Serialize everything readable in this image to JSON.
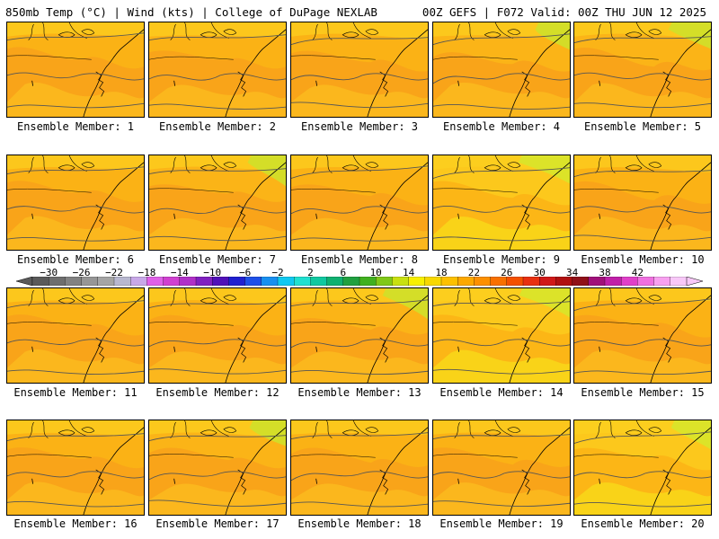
{
  "header": {
    "left": "850mb Temp (°C) | Wind (kts) | College of DuPage NEXLAB",
    "right": "00Z GEFS | F072 Valid: 00Z THU JUN 12 2025"
  },
  "member_label_prefix": "Ensemble Member: ",
  "members": [
    {
      "n": 1,
      "tone": "orange"
    },
    {
      "n": 2,
      "tone": "orange"
    },
    {
      "n": 3,
      "tone": "orange"
    },
    {
      "n": 4,
      "tone": "orange-green"
    },
    {
      "n": 5,
      "tone": "orange-green"
    },
    {
      "n": 6,
      "tone": "orange"
    },
    {
      "n": 7,
      "tone": "orange-green"
    },
    {
      "n": 8,
      "tone": "orange"
    },
    {
      "n": 9,
      "tone": "yellow"
    },
    {
      "n": 10,
      "tone": "orange"
    },
    {
      "n": 11,
      "tone": "orange"
    },
    {
      "n": 12,
      "tone": "orange"
    },
    {
      "n": 13,
      "tone": "orange-green"
    },
    {
      "n": 14,
      "tone": "yellow"
    },
    {
      "n": 15,
      "tone": "orange"
    },
    {
      "n": 16,
      "tone": "orange"
    },
    {
      "n": 17,
      "tone": "orange-green"
    },
    {
      "n": 18,
      "tone": "orange"
    },
    {
      "n": 19,
      "tone": "orange"
    },
    {
      "n": 20,
      "tone": "yellow"
    }
  ],
  "colorbar": {
    "labels": [
      "−30",
      "−26",
      "−22",
      "−18",
      "−14",
      "−10",
      "−6",
      "−2",
      "2",
      "6",
      "10",
      "14",
      "18",
      "22",
      "26",
      "30",
      "34",
      "38",
      "42"
    ],
    "colors": [
      "#5a5a5a",
      "#6e6e6e",
      "#828282",
      "#969696",
      "#a5a5a5",
      "#b8b8d0",
      "#c8a8e8",
      "#e060e8",
      "#d040d0",
      "#b030c8",
      "#8020c0",
      "#5010b8",
      "#2020d0",
      "#1e50e8",
      "#1890f0",
      "#10c8f0",
      "#20e0d0",
      "#10c8a0",
      "#10b070",
      "#20a040",
      "#40b020",
      "#80c818",
      "#c8e010",
      "#f8f000",
      "#f8d800",
      "#fcc000",
      "#fca800",
      "#fc9000",
      "#f87000",
      "#f45000",
      "#e83010",
      "#d01818",
      "#b01010",
      "#901018",
      "#a0107a",
      "#c020a8",
      "#e040c8",
      "#f070e0",
      "#f8a0f0",
      "#f8c8f8"
    ]
  }
}
